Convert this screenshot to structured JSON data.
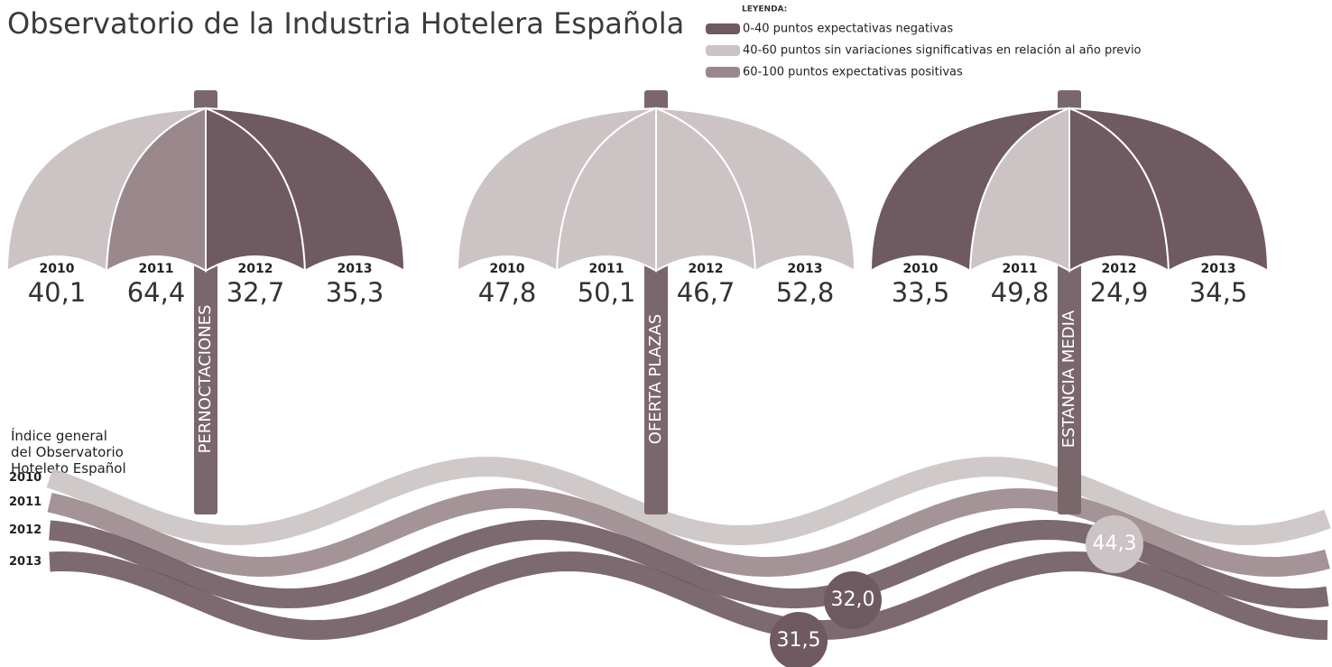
{
  "header": {
    "title": "Observatorio de la Industria Hotelera Española"
  },
  "legend": {
    "title": "LEYENDA:",
    "items": [
      {
        "label": "0-40 puntos expectativas negativas",
        "color": "#6e5a60"
      },
      {
        "label": "40-60 puntos sin variaciones significativas en relación al año previo",
        "color": "#cbc3c4"
      },
      {
        "label": "60-100 puntos expectativas positivas",
        "color": "#9a888c"
      }
    ]
  },
  "umbrellas": [
    {
      "label": "PERNOCTACIONES",
      "years": [
        {
          "year": "2010",
          "value": "40,1",
          "color": "#cbc3c4"
        },
        {
          "year": "2011",
          "value": "64,4",
          "color": "#9a888c"
        },
        {
          "year": "2012",
          "value": "32,7",
          "color": "#6e5a60"
        },
        {
          "year": "2013",
          "value": "35,3",
          "color": "#6e5a60"
        }
      ]
    },
    {
      "label": "OFERTA PLAZAS",
      "years": [
        {
          "year": "2010",
          "value": "47,8",
          "color": "#cbc3c4"
        },
        {
          "year": "2011",
          "value": "50,1",
          "color": "#cbc3c4"
        },
        {
          "year": "2012",
          "value": "46,7",
          "color": "#cbc3c4"
        },
        {
          "year": "2013",
          "value": "52,8",
          "color": "#cbc3c4"
        }
      ]
    },
    {
      "label": "ESTANCIA MEDIA",
      "years": [
        {
          "year": "2010",
          "value": "33,5",
          "color": "#6e5a60"
        },
        {
          "year": "2011",
          "value": "49,8",
          "color": "#cbc3c4"
        },
        {
          "year": "2012",
          "value": "24,9",
          "color": "#6e5a60"
        },
        {
          "year": "2013",
          "value": "34,5",
          "color": "#6e5a60"
        }
      ]
    }
  ],
  "index": {
    "title": "Índice general del Observatorio Hoteleto Español",
    "waves": [
      {
        "year": "2010",
        "value": "44,3",
        "color": "#cbc3c4"
      },
      {
        "year": "2011",
        "value": "",
        "color": "#9a888c"
      },
      {
        "year": "2012",
        "value": "32,0",
        "color": "#6e5a60"
      },
      {
        "year": "2013",
        "value": "31,5",
        "color": "#6e5a60"
      }
    ]
  }
}
